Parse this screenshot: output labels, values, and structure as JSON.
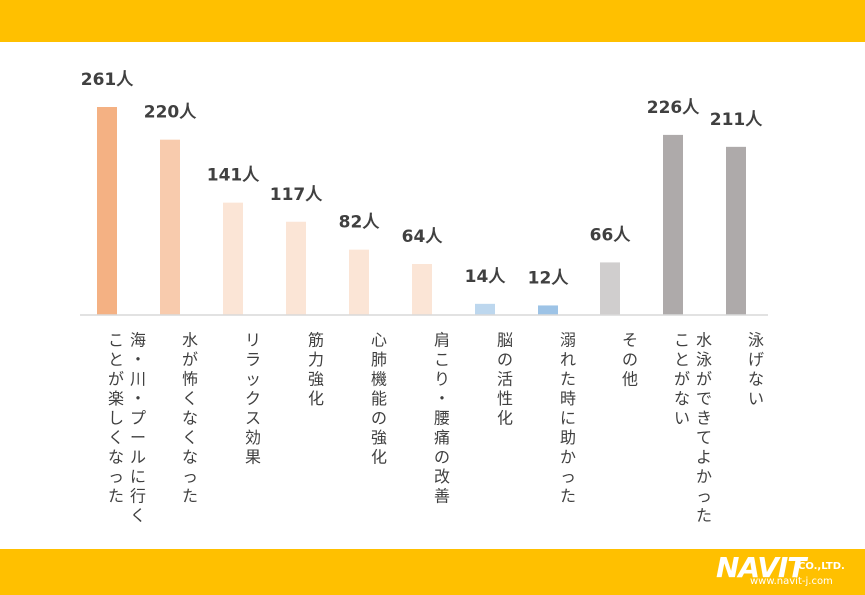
{
  "chart_data": {
    "type": "bar",
    "unit_suffix": "人",
    "categories": [
      [
        "海・川・プールに行く",
        "ことが楽しくなった"
      ],
      [
        "水が怖くなくなった"
      ],
      [
        "リラックス効果"
      ],
      [
        "筋力強化"
      ],
      [
        "心肺機能の強化"
      ],
      [
        "肩こり・腰痛の改善"
      ],
      [
        "脳の活性化"
      ],
      [
        "溺れた時に助かった"
      ],
      [
        "その他"
      ],
      [
        "水泳ができてよかった",
        "ことがない"
      ],
      [
        "泳げない"
      ]
    ],
    "values": [
      261,
      220,
      141,
      117,
      82,
      64,
      14,
      12,
      66,
      226,
      211
    ],
    "value_labels": [
      "261人",
      "220人",
      "141人",
      "117人",
      "82人",
      "64人",
      "14人",
      "12人",
      "66人",
      "226人",
      "211人"
    ],
    "bar_colors": [
      "#f4b183",
      "#f8cbad",
      "#fbe5d6",
      "#fbe5d6",
      "#fbe5d6",
      "#fbe5d6",
      "#bdd7ee",
      "#9dc3e6",
      "#d0cece",
      "#aeaaaa",
      "#aeaaaa"
    ],
    "ylim": [
      0,
      261
    ],
    "grid": false,
    "legend": "none",
    "title": "",
    "xlabel": "",
    "ylabel": ""
  },
  "colors": {
    "band": "#ffc000",
    "text": "#404040",
    "axis": "#d9d9d9"
  },
  "logo": {
    "name": "NAVIT",
    "suffix": "CO.,LTD.",
    "url": "www.navit-j.com"
  }
}
